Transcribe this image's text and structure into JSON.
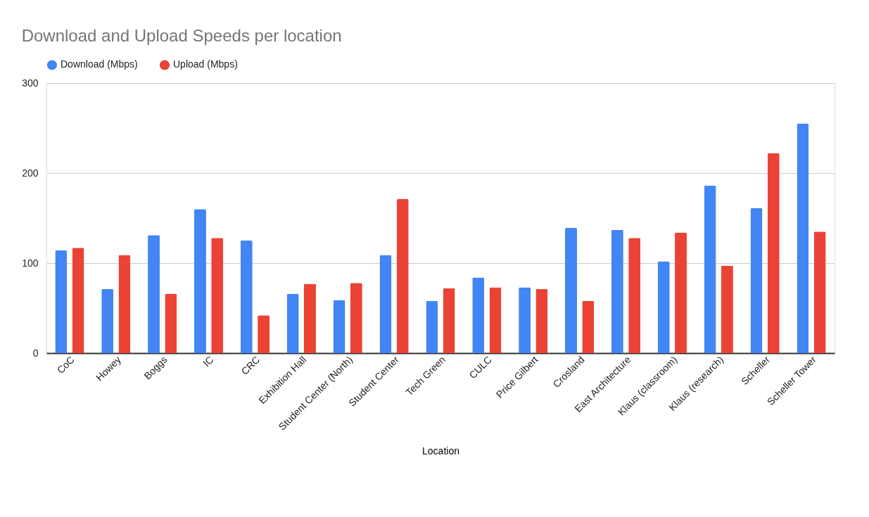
{
  "chart_data": {
    "type": "bar",
    "title": "Download and Upload Speeds per location",
    "xlabel": "Location",
    "categories": [
      "CoC",
      "Howey",
      "Boggs",
      "IC",
      "CRC",
      "Exhibition Hall",
      "Student Center (North)",
      "Student Center",
      "Tech Green",
      "CULC",
      "Price Gilbert",
      "Crosland",
      "East Architecture",
      "Klaus (classroom)",
      "Klaus (research)",
      "Scheller",
      "Scheller Tower"
    ],
    "series": [
      {
        "name": "Download (Mbps)",
        "color": "#4285f4",
        "values": [
          114,
          71,
          131,
          160,
          125,
          66,
          59,
          109,
          58,
          84,
          73,
          139,
          137,
          102,
          186,
          161,
          255
        ]
      },
      {
        "name": "Upload (Mbps)",
        "color": "#ea4335",
        "values": [
          117,
          109,
          66,
          128,
          42,
          77,
          78,
          171,
          72,
          73,
          71,
          58,
          128,
          134,
          97,
          222,
          135
        ]
      }
    ],
    "ylim": [
      0,
      300
    ],
    "yticks": [
      0,
      100,
      200,
      300
    ],
    "grid": "y",
    "legend": "top"
  }
}
